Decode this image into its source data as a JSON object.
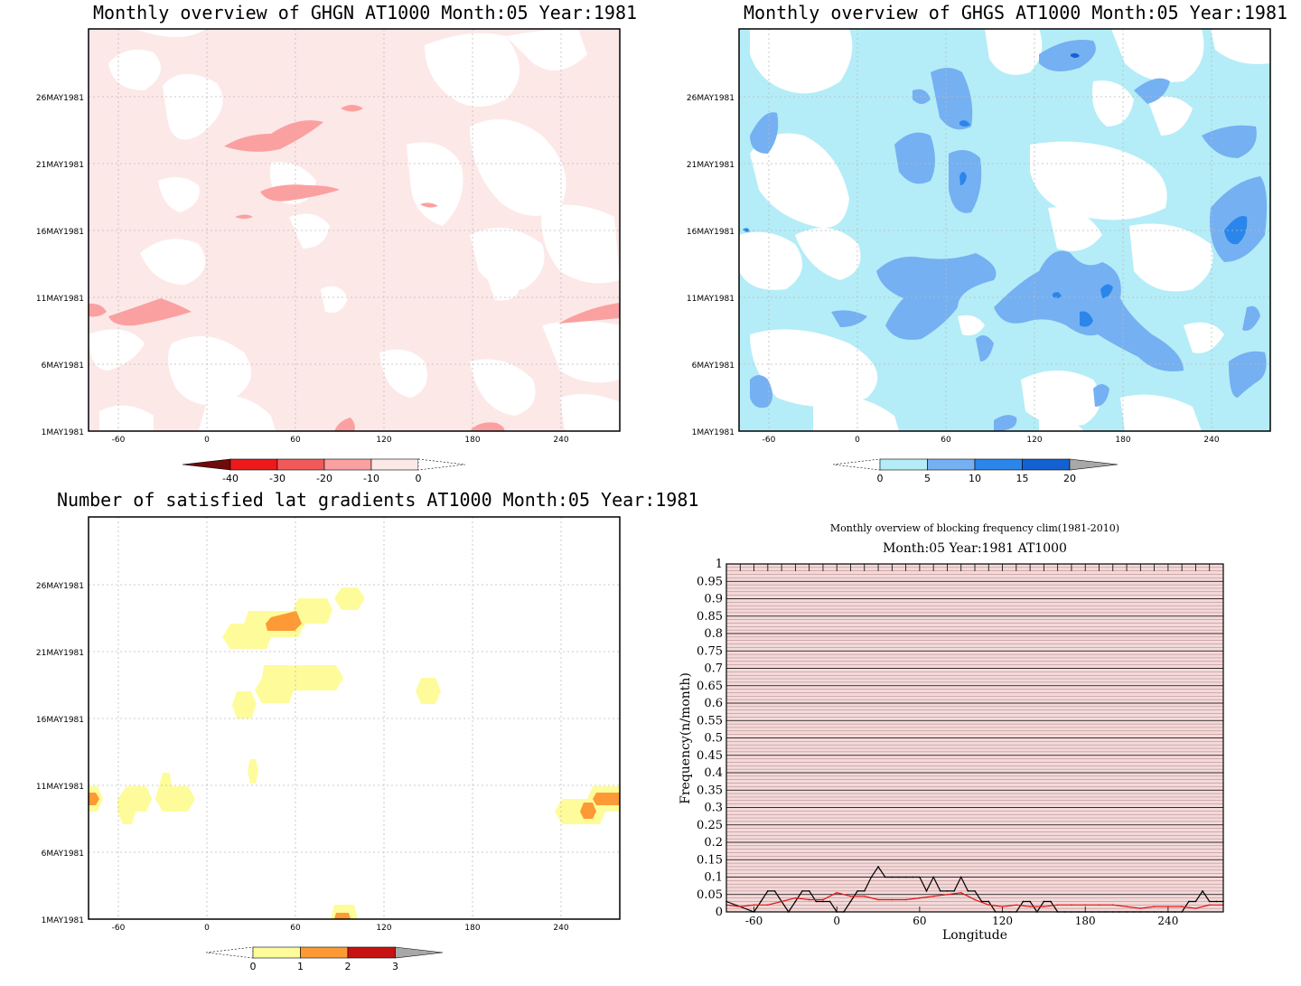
{
  "panels": {
    "ghgn": {
      "title": "Monthly overview of GHGN AT1000 Month:05 Year:1981",
      "colorbar_labels": [
        "-40",
        "-30",
        "-20",
        "-10",
        "0"
      ],
      "colorbar_colors": [
        "#6e0b0b",
        "#ee1a1a",
        "#f25a5a",
        "#fba0a0",
        "#fde8e8"
      ]
    },
    "ghgs": {
      "title": "Monthly overview of GHGS AT1000 Month:05 Year:1981",
      "colorbar_labels": [
        "0",
        "5",
        "10",
        "15",
        "20"
      ],
      "colorbar_colors": [
        "#b4edf7",
        "#75b0f2",
        "#2a86ea",
        "#1461d2",
        "#a8a8a8"
      ]
    },
    "lat": {
      "title": "Number of satisfied lat gradients AT1000 Month:05 Year:1981",
      "colorbar_labels": [
        "0",
        "1",
        "2",
        "3"
      ],
      "colorbar_colors": [
        "#fefc9a",
        "#fd9a35",
        "#c81212",
        "#a8a8a8"
      ]
    },
    "freq": {
      "title": "Monthly overview of blocking frequency clim(1981-2010)",
      "subtitle": "Month:05 Year:1981  AT1000"
    }
  },
  "axes": {
    "lon_ticks": [
      "-60",
      "0",
      "60",
      "120",
      "180",
      "240"
    ],
    "date_ticks": [
      "1MAY1981",
      "6MAY1981",
      "11MAY1981",
      "16MAY1981",
      "21MAY1981",
      "26MAY1981"
    ]
  },
  "chart_data": [
    {
      "type": "heatmap",
      "title": "Monthly overview of GHGN AT1000 Month:05 Year:1981",
      "x_range": [
        -80,
        280
      ],
      "y_range": [
        "1MAY1981",
        "31MAY1981"
      ],
      "color_levels": [
        -40,
        -30,
        -20,
        -10,
        0
      ]
    },
    {
      "type": "heatmap",
      "title": "Monthly overview of GHGS AT1000 Month:05 Year:1981",
      "x_range": [
        -80,
        280
      ],
      "y_range": [
        "1MAY1981",
        "31MAY1981"
      ],
      "color_levels": [
        0,
        5,
        10,
        15,
        20
      ]
    },
    {
      "type": "heatmap",
      "title": "Number of satisfied lat gradients AT1000 Month:05 Year:1981",
      "x_range": [
        -80,
        280
      ],
      "y_range": [
        "1MAY1981",
        "31MAY1981"
      ],
      "color_levels": [
        0,
        1,
        2,
        3
      ]
    },
    {
      "type": "line",
      "title": "Monthly overview of blocking frequency clim(1981-2010)",
      "subtitle": "Month:05 Year:1981  AT1000",
      "xlabel": "Longitude",
      "ylabel": "Frequency(n/month)",
      "xlim": [
        -80,
        280
      ],
      "ylim": [
        0,
        1
      ],
      "y_ticks": [
        "0",
        "0.05",
        "0.1",
        "0.15",
        "0.2",
        "0.25",
        "0.3",
        "0.35",
        "0.4",
        "0.45",
        "0.5",
        "0.55",
        "0.6",
        "0.65",
        "0.7",
        "0.75",
        "0.8",
        "0.85",
        "0.9",
        "0.95",
        "1"
      ],
      "series": [
        {
          "color": "#000000",
          "x": [
            -80,
            -60,
            -55,
            -50,
            -45,
            -40,
            -35,
            -30,
            -25,
            -20,
            -15,
            -10,
            -5,
            0,
            5,
            10,
            15,
            20,
            25,
            30,
            35,
            40,
            45,
            50,
            55,
            60,
            65,
            70,
            75,
            80,
            85,
            90,
            95,
            100,
            105,
            110,
            115,
            120,
            125,
            130,
            135,
            140,
            145,
            150,
            155,
            160,
            165,
            170,
            175,
            180,
            185,
            190,
            195,
            200,
            205,
            210,
            215,
            220,
            225,
            230,
            235,
            240,
            245,
            250,
            255,
            260,
            265,
            270,
            275,
            280
          ],
          "y": [
            0.03,
            0,
            0.03,
            0.06,
            0.06,
            0.03,
            0,
            0.03,
            0.06,
            0.06,
            0.03,
            0.03,
            0.03,
            0,
            0,
            0.03,
            0.06,
            0.06,
            0.1,
            0.13,
            0.1,
            0.1,
            0.1,
            0.1,
            0.1,
            0.1,
            0.06,
            0.1,
            0.06,
            0.06,
            0.06,
            0.1,
            0.06,
            0.06,
            0.03,
            0.03,
            0,
            0,
            0,
            0,
            0.03,
            0.03,
            0,
            0.03,
            0.03,
            0,
            0,
            0,
            0,
            0,
            0,
            0,
            0,
            0,
            0,
            0,
            0,
            0,
            0,
            0,
            0,
            0,
            0,
            0,
            0.03,
            0.03,
            0.06,
            0.03,
            0.03,
            0.03
          ]
        },
        {
          "color": "#e01010",
          "x": [
            -80,
            -70,
            -60,
            -50,
            -40,
            -30,
            -20,
            -10,
            0,
            10,
            20,
            30,
            40,
            50,
            60,
            70,
            80,
            90,
            100,
            110,
            120,
            130,
            140,
            150,
            160,
            170,
            180,
            190,
            200,
            210,
            220,
            230,
            240,
            250,
            260,
            270,
            280
          ],
          "y": [
            0.02,
            0.015,
            0.02,
            0.02,
            0.03,
            0.04,
            0.035,
            0.035,
            0.055,
            0.045,
            0.045,
            0.035,
            0.035,
            0.035,
            0.04,
            0.045,
            0.05,
            0.055,
            0.035,
            0.02,
            0.015,
            0.02,
            0.015,
            0.015,
            0.02,
            0.02,
            0.02,
            0.02,
            0.02,
            0.015,
            0.01,
            0.015,
            0.015,
            0.015,
            0.01,
            0.02,
            0.02
          ]
        }
      ]
    }
  ]
}
